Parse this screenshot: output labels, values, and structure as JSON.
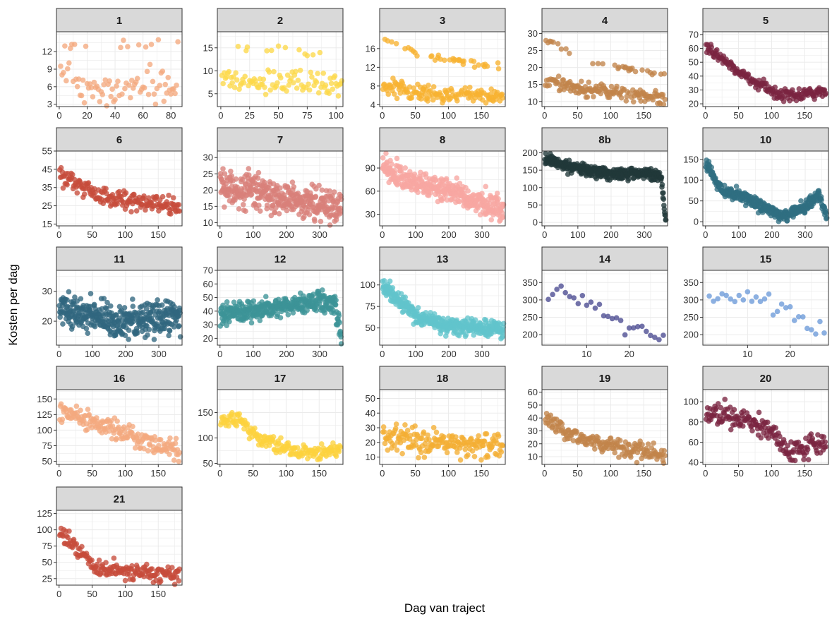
{
  "axis_titles": {
    "x": "Dag van traject",
    "y": "Kosten per dag"
  },
  "chart_data": {
    "type": "scatter",
    "facet_layout": "wrap",
    "ncol": 5,
    "xlabel": "Dag van traject",
    "ylabel": "Kosten per dag",
    "background": "#ffffff",
    "strip_fill": "#d9d9d9",
    "grid_color": "#ebebeb",
    "grid": true,
    "facets": [
      {
        "label": "1",
        "color": "#f4a97f",
        "xlim": [
          -2,
          88
        ],
        "ylim": [
          2.6,
          15.4
        ],
        "xticks": [
          0,
          20,
          40,
          60,
          80
        ],
        "yticks": [
          3,
          6,
          9,
          12
        ],
        "n": 85,
        "x_range": [
          1,
          85
        ],
        "trend": [
          [
            1,
            8.5
          ],
          [
            20,
            5.5
          ],
          [
            50,
            6
          ],
          [
            85,
            6
          ]
        ],
        "spread": 2.0,
        "upper_band": {
          "frac": 0.14,
          "values": [
            [
              1,
              13
            ],
            [
              85,
              13.5
            ]
          ]
        }
      },
      {
        "label": "2",
        "color": "#fdd84a",
        "xlim": [
          -3,
          106
        ],
        "ylim": [
          2.2,
          18.5
        ],
        "xticks": [
          0,
          25,
          50,
          75,
          100
        ],
        "yticks": [
          5,
          10,
          15
        ],
        "n": 105,
        "x_range": [
          1,
          105
        ],
        "trend": [
          [
            1,
            8.5
          ],
          [
            50,
            7
          ],
          [
            105,
            7
          ]
        ],
        "spread": 2.0,
        "upper_band": {
          "frac": 0.14,
          "values": [
            [
              1,
              16
            ],
            [
              105,
              13
            ]
          ]
        }
      },
      {
        "label": "3",
        "color": "#f7b231",
        "xlim": [
          -4,
          186
        ],
        "ylim": [
          3.6,
          19.6
        ],
        "xticks": [
          0,
          50,
          100,
          150
        ],
        "yticks": [
          4,
          8,
          12,
          16
        ],
        "n": 180,
        "x_range": [
          1,
          182
        ],
        "trend": [
          [
            1,
            8
          ],
          [
            60,
            6.5
          ],
          [
            182,
            6
          ]
        ],
        "spread": 1.3,
        "upper_band": {
          "frac": 0.16,
          "values": [
            [
              1,
              18.5
            ],
            [
              60,
              14.5
            ],
            [
              182,
              12
            ]
          ]
        }
      },
      {
        "label": "4",
        "color": "#c2844a",
        "xlim": [
          -4,
          186
        ],
        "ylim": [
          8.5,
          30.5
        ],
        "xticks": [
          0,
          50,
          100,
          150
        ],
        "yticks": [
          10,
          15,
          20,
          25,
          30
        ],
        "n": 180,
        "x_range": [
          1,
          182
        ],
        "trend": [
          [
            1,
            16
          ],
          [
            80,
            13
          ],
          [
            182,
            11
          ]
        ],
        "spread": 1.6,
        "upper_band": {
          "frac": 0.2,
          "values": [
            [
              1,
              28
            ],
            [
              80,
              21
            ],
            [
              182,
              18
            ]
          ]
        }
      },
      {
        "label": "5",
        "color": "#7a2440",
        "xlim": [
          -4,
          186
        ],
        "ylim": [
          18,
          72
        ],
        "xticks": [
          0,
          50,
          100,
          150
        ],
        "yticks": [
          20,
          30,
          40,
          50,
          60,
          70
        ],
        "n": 180,
        "x_range": [
          1,
          182
        ],
        "trend": [
          [
            1,
            62
          ],
          [
            30,
            50
          ],
          [
            60,
            40
          ],
          [
            110,
            27
          ],
          [
            150,
            26
          ],
          [
            182,
            30
          ]
        ],
        "spread": 3.0
      },
      {
        "label": "6",
        "color": "#c64c3b",
        "xlim": [
          -4,
          186
        ],
        "ylim": [
          14,
          55
        ],
        "xticks": [
          0,
          50,
          100,
          150
        ],
        "yticks": [
          15,
          25,
          35,
          45,
          55
        ],
        "n": 180,
        "x_range": [
          1,
          182
        ],
        "trend": [
          [
            1,
            42
          ],
          [
            50,
            32
          ],
          [
            100,
            28
          ],
          [
            182,
            24
          ]
        ],
        "spread": 3.5
      },
      {
        "label": "7",
        "color": "#d9807a",
        "xlim": [
          -8,
          370
        ],
        "ylim": [
          9,
          32
        ],
        "xticks": [
          0,
          100,
          200,
          300
        ],
        "yticks": [
          10,
          15,
          20,
          25,
          30
        ],
        "n": 365,
        "x_range": [
          1,
          365
        ],
        "trend": [
          [
            1,
            21
          ],
          [
            100,
            20
          ],
          [
            200,
            17
          ],
          [
            365,
            15
          ]
        ],
        "spread": 3.8
      },
      {
        "label": "8",
        "color": "#f7a6a2",
        "xlim": [
          -8,
          370
        ],
        "ylim": [
          15,
          112
        ],
        "xticks": [
          0,
          100,
          200,
          300
        ],
        "yticks": [
          30,
          60,
          90
        ],
        "n": 365,
        "x_range": [
          1,
          365
        ],
        "trend": [
          [
            1,
            92
          ],
          [
            100,
            70
          ],
          [
            200,
            60
          ],
          [
            300,
            45
          ],
          [
            365,
            35
          ]
        ],
        "spread": 11
      },
      {
        "label": "8b",
        "color": "#21393a",
        "xlim": [
          -8,
          370
        ],
        "ylim": [
          -10,
          205
        ],
        "xticks": [
          0,
          100,
          200,
          300
        ],
        "yticks": [
          0,
          50,
          100,
          150,
          200
        ],
        "n": 365,
        "x_range": [
          1,
          365
        ],
        "trend": [
          [
            1,
            180
          ],
          [
            100,
            155
          ],
          [
            200,
            140
          ],
          [
            340,
            140
          ],
          [
            352,
            120
          ],
          [
            365,
            5
          ]
        ],
        "spread": 12
      },
      {
        "label": "10",
        "color": "#2f6e82",
        "xlim": [
          -8,
          370
        ],
        "ylim": [
          -10,
          170
        ],
        "xticks": [
          0,
          100,
          200,
          300
        ],
        "yticks": [
          0,
          50,
          100,
          150
        ],
        "n": 365,
        "x_range": [
          1,
          365
        ],
        "trend": [
          [
            1,
            140
          ],
          [
            50,
            75
          ],
          [
            100,
            65
          ],
          [
            150,
            45
          ],
          [
            230,
            15
          ],
          [
            300,
            35
          ],
          [
            340,
            65
          ],
          [
            365,
            10
          ]
        ],
        "spread": 10
      },
      {
        "label": "11",
        "color": "#31667f",
        "xlim": [
          -8,
          370
        ],
        "ylim": [
          12,
          37
        ],
        "xticks": [
          0,
          100,
          200,
          300
        ],
        "yticks": [
          20,
          30
        ],
        "n": 365,
        "x_range": [
          1,
          365
        ],
        "trend": [
          [
            1,
            24
          ],
          [
            100,
            22
          ],
          [
            200,
            20
          ],
          [
            365,
            22
          ]
        ],
        "spread": 4.0
      },
      {
        "label": "12",
        "color": "#3c9497",
        "xlim": [
          -8,
          370
        ],
        "ylim": [
          15,
          70
        ],
        "xticks": [
          0,
          100,
          200,
          300
        ],
        "yticks": [
          20,
          30,
          40,
          50,
          60,
          70
        ],
        "n": 365,
        "x_range": [
          1,
          365
        ],
        "trend": [
          [
            1,
            38
          ],
          [
            150,
            42
          ],
          [
            300,
            48
          ],
          [
            345,
            45
          ],
          [
            365,
            22
          ]
        ],
        "spread": 5
      },
      {
        "label": "13",
        "color": "#62c4cc",
        "xlim": [
          -8,
          370
        ],
        "ylim": [
          30,
          117
        ],
        "xticks": [
          0,
          100,
          200,
          300
        ],
        "yticks": [
          50,
          75,
          100
        ],
        "n": 365,
        "x_range": [
          1,
          365
        ],
        "trend": [
          [
            1,
            100
          ],
          [
            100,
            65
          ],
          [
            200,
            52
          ],
          [
            365,
            48
          ]
        ],
        "spread": 7
      },
      {
        "label": "14",
        "color": "#4a4a91",
        "xlim": [
          -0.5,
          29
        ],
        "ylim": [
          170,
          385
        ],
        "xticks": [
          10,
          20
        ],
        "yticks": [
          200,
          250,
          300,
          350
        ],
        "n": 28,
        "x_range": [
          1,
          28
        ],
        "trend": [
          [
            1,
            330
          ],
          [
            10,
            295
          ],
          [
            20,
            225
          ],
          [
            28,
            185
          ]
        ],
        "spread": 20
      },
      {
        "label": "15",
        "color": "#6c9ad9",
        "xlim": [
          -0.5,
          29
        ],
        "ylim": [
          170,
          385
        ],
        "xticks": [
          10,
          20
        ],
        "yticks": [
          200,
          250,
          300,
          350
        ],
        "n": 28,
        "x_range": [
          1,
          28
        ],
        "trend": [
          [
            1,
            310
          ],
          [
            12,
            305
          ],
          [
            20,
            265
          ],
          [
            28,
            205
          ]
        ],
        "spread": 20
      },
      {
        "label": "16",
        "color": "#f4a97f",
        "xlim": [
          -4,
          186
        ],
        "ylim": [
          45,
          165
        ],
        "xticks": [
          0,
          50,
          100,
          150
        ],
        "yticks": [
          50,
          75,
          100,
          125,
          150
        ],
        "n": 180,
        "x_range": [
          1,
          182
        ],
        "trend": [
          [
            1,
            130
          ],
          [
            100,
            95
          ],
          [
            150,
            75
          ],
          [
            182,
            65
          ]
        ],
        "spread": 12
      },
      {
        "label": "17",
        "color": "#fdd23e",
        "xlim": [
          -4,
          186
        ],
        "ylim": [
          48,
          195
        ],
        "xticks": [
          0,
          50,
          100,
          150
        ],
        "yticks": [
          50,
          100,
          150
        ],
        "n": 180,
        "x_range": [
          1,
          182
        ],
        "trend": [
          [
            1,
            140
          ],
          [
            30,
            135
          ],
          [
            55,
            100
          ],
          [
            90,
            85
          ],
          [
            120,
            70
          ],
          [
            182,
            75
          ]
        ],
        "spread": 10
      },
      {
        "label": "18",
        "color": "#f4ae33",
        "xlim": [
          -4,
          186
        ],
        "ylim": [
          5,
          56
        ],
        "xticks": [
          0,
          50,
          100,
          150
        ],
        "yticks": [
          10,
          20,
          30,
          40,
          50
        ],
        "n": 180,
        "x_range": [
          1,
          182
        ],
        "trend": [
          [
            1,
            25
          ],
          [
            60,
            20
          ],
          [
            182,
            17
          ]
        ],
        "spread": 6
      },
      {
        "label": "19",
        "color": "#c2844a",
        "xlim": [
          -4,
          186
        ],
        "ylim": [
          4,
          62
        ],
        "xticks": [
          0,
          50,
          100,
          150
        ],
        "yticks": [
          10,
          20,
          30,
          40,
          50,
          60
        ],
        "n": 180,
        "x_range": [
          1,
          182
        ],
        "trend": [
          [
            1,
            42
          ],
          [
            30,
            28
          ],
          [
            100,
            18
          ],
          [
            182,
            12
          ]
        ],
        "spread": 5
      },
      {
        "label": "20",
        "color": "#7a2440",
        "xlim": [
          -4,
          186
        ],
        "ylim": [
          38,
          112
        ],
        "xticks": [
          0,
          50,
          100,
          150
        ],
        "yticks": [
          40,
          60,
          80,
          100
        ],
        "n": 180,
        "x_range": [
          1,
          182
        ],
        "trend": [
          [
            1,
            90
          ],
          [
            50,
            85
          ],
          [
            100,
            70
          ],
          [
            125,
            50
          ],
          [
            182,
            58
          ]
        ],
        "spread": 8
      },
      {
        "label": "21",
        "color": "#c64c3b",
        "xlim": [
          -4,
          186
        ],
        "ylim": [
          15,
          130
        ],
        "xticks": [
          0,
          50,
          100,
          150
        ],
        "yticks": [
          25,
          50,
          75,
          100,
          125
        ],
        "n": 180,
        "x_range": [
          1,
          182
        ],
        "trend": [
          [
            1,
            100
          ],
          [
            30,
            65
          ],
          [
            60,
            40
          ],
          [
            182,
            30
          ]
        ],
        "spread": 9
      }
    ]
  }
}
